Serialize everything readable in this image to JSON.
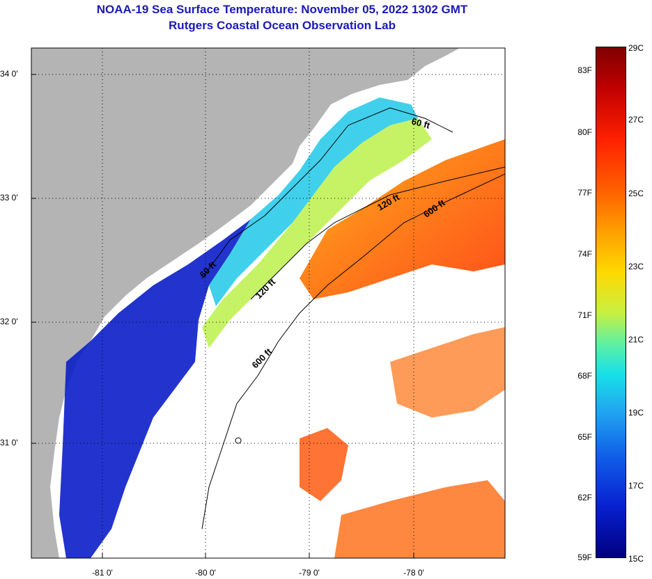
{
  "title_line1": "NOAA-19 Sea Surface Temperature:  November 05, 2022 1302 GMT",
  "title_line2": "Rutgers Coastal Ocean Observation Lab",
  "lat_labels": [
    "34 0'",
    "33 0'",
    "32 0'",
    "31 0'"
  ],
  "lon_labels": [
    "-81 0'",
    "-80 0'",
    "-79 0'",
    "-78 0'"
  ],
  "contours": {
    "c60_a": "60 ft",
    "c60_b": "60 ft",
    "c120_a": "120 ft",
    "c120_b": "120 ft",
    "c600_a": "600 ft",
    "c600_b": "600 ft"
  },
  "colorbar": {
    "f_labels": [
      "83F",
      "80F",
      "77F",
      "74F",
      "71F",
      "68F",
      "65F",
      "62F",
      "59F"
    ],
    "c_labels": [
      "29C",
      "27C",
      "25C",
      "23C",
      "21C",
      "19C",
      "17C",
      "15C"
    ]
  },
  "colors": {
    "land": "#b4b4b4",
    "title": "#1a1ab4",
    "nodata": "#ffffff"
  }
}
